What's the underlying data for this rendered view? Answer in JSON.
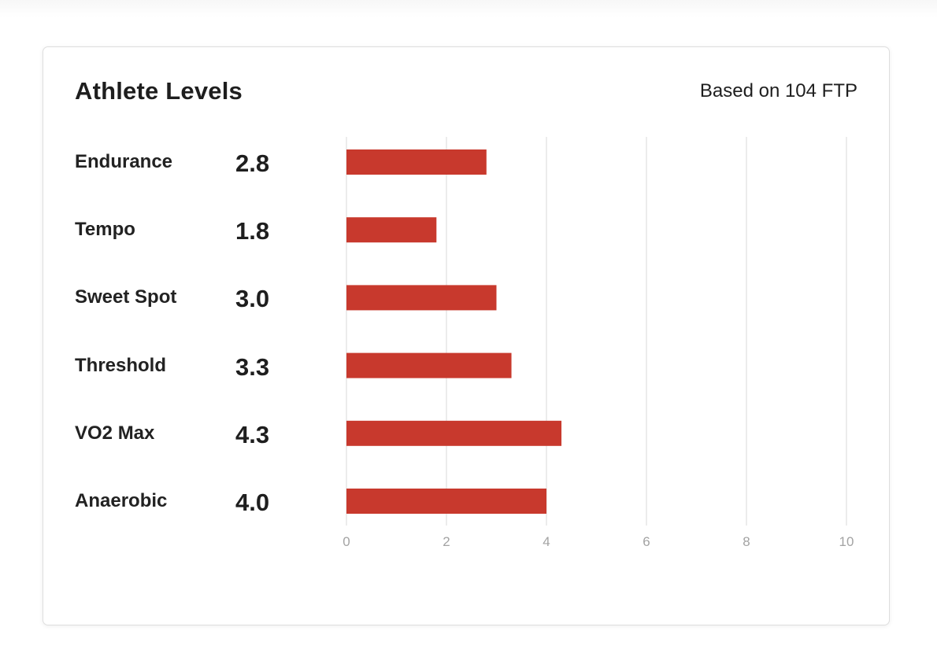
{
  "card": {
    "title": "Athlete Levels",
    "basis": "Based on 104 FTP"
  },
  "chart_data": {
    "type": "bar",
    "orientation": "horizontal",
    "categories": [
      "Endurance",
      "Tempo",
      "Sweet Spot",
      "Threshold",
      "VO2 Max",
      "Anaerobic"
    ],
    "values": [
      2.8,
      1.8,
      3.0,
      3.3,
      4.3,
      4.0
    ],
    "value_labels": [
      "2.8",
      "1.8",
      "3.0",
      "3.3",
      "4.3",
      "4.0"
    ],
    "xlim": [
      0,
      10
    ],
    "xticks": [
      0,
      2,
      4,
      6,
      8,
      10
    ],
    "grid": true,
    "bar_color": "#c8392d",
    "grid_color": "#e6e6e6",
    "title": "Athlete Levels",
    "xlabel": "",
    "ylabel": ""
  }
}
